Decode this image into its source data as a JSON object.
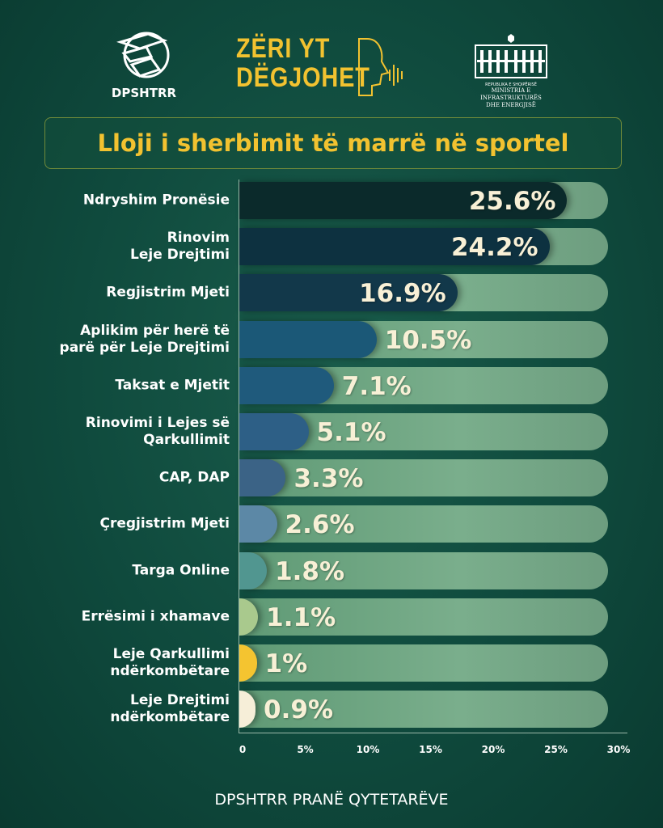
{
  "header": {
    "left_logo": "DPSHTRR",
    "brand_line1": "ZËRI YT",
    "brand_line2": "DËGJOHET",
    "ministry_line1": "REPUBLIKA E SHQIPËRISË",
    "ministry_line2": "MINISTRIA E INFRASTRUKTURËS",
    "ministry_line3": "DHE ENERGJISË"
  },
  "footer": "DPSHTRR PRANË QYTETARËVE",
  "chart_data": {
    "type": "bar",
    "orientation": "horizontal",
    "title": "Lloji i sherbimit të marrë në sportel",
    "categories": [
      [
        "Ndryshim Pronësie"
      ],
      [
        "Rinovim",
        "Leje Drejtimi"
      ],
      [
        "Regjistrim Mjeti"
      ],
      [
        "Aplikim për herë të",
        "parë për Leje Drejtimi"
      ],
      [
        "Taksat e Mjetit"
      ],
      [
        "Rinovimi i Lejes së",
        "Qarkullimit"
      ],
      [
        "CAP, DAP"
      ],
      [
        "Çregjistrim Mjeti"
      ],
      [
        "Targa Online"
      ],
      [
        "Errësimi i xhamave"
      ],
      [
        "Leje Qarkullimi",
        "ndërkombëtare"
      ],
      [
        "Leje Drejtimi",
        "ndërkombëtare"
      ]
    ],
    "values": [
      25.6,
      24.2,
      16.9,
      10.5,
      7.1,
      5.1,
      3.3,
      2.6,
      1.8,
      1.1,
      1,
      0.9
    ],
    "value_labels": [
      "25.6%",
      "24.2%",
      "16.9%",
      "10.5%",
      "7.1%",
      "5.1%",
      "3.3%",
      "2.6%",
      "1.8%",
      "1.1%",
      "1%",
      "0.9%"
    ],
    "colors": [
      "#0b2a2b",
      "#0d3140",
      "#12384a",
      "#1b5877",
      "#1f5a7c",
      "#2d5f86",
      "#3b6386",
      "#5c88a6",
      "#519690",
      "#a9c98d",
      "#f4c430",
      "#f6eed8"
    ],
    "xlim": [
      0,
      30
    ],
    "x_ticks": [
      "0",
      "5%",
      "10%",
      "15%",
      "20%",
      "25%",
      "30%"
    ],
    "xlabel": "",
    "ylabel": ""
  }
}
